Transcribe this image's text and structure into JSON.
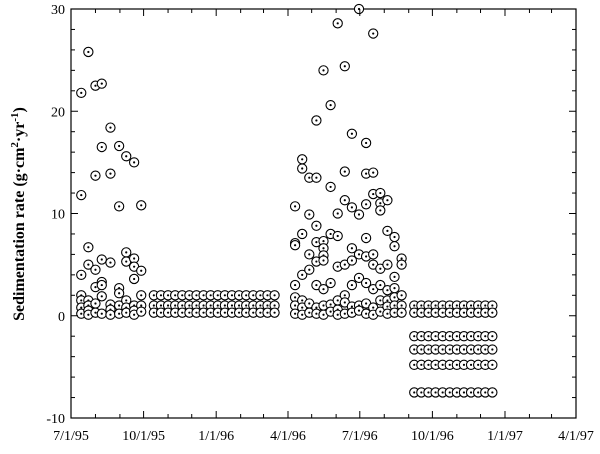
{
  "chart_data": {
    "type": "scatter",
    "title": "",
    "ylabel": {
      "main": "Sedimentation rate (g·cm",
      "sup1": "2",
      "mid": "·yr",
      "sup2": "-1",
      "end": ")"
    },
    "xlabel": "",
    "xlim": [
      "1995-07-01",
      "1997-04-01"
    ],
    "ylim": [
      -10,
      30
    ],
    "x_ticks": [
      "7/1/95",
      "10/1/95",
      "1/1/96",
      "4/1/96",
      "7/1/96",
      "10/1/96",
      "1/1/97",
      "4/1/97"
    ],
    "y_ticks": [
      "-10",
      "0",
      "10",
      "20",
      "30"
    ],
    "grid": false,
    "marker": "circle-dot",
    "points": [
      [
        "1995-07-14",
        11.8
      ],
      [
        "1995-07-14",
        21.8
      ],
      [
        "1995-07-14",
        4.0
      ],
      [
        "1995-07-14",
        2.0
      ],
      [
        "1995-07-14",
        1.5
      ],
      [
        "1995-07-14",
        0.8
      ],
      [
        "1995-07-14",
        0.2
      ],
      [
        "1995-07-23",
        25.8
      ],
      [
        "1995-07-23",
        6.7
      ],
      [
        "1995-07-23",
        5.0
      ],
      [
        "1995-07-23",
        1.5
      ],
      [
        "1995-07-23",
        1.0
      ],
      [
        "1995-07-23",
        0.5
      ],
      [
        "1995-07-23",
        0.1
      ],
      [
        "1995-08-01",
        22.5
      ],
      [
        "1995-08-01",
        13.7
      ],
      [
        "1995-08-01",
        4.5
      ],
      [
        "1995-08-01",
        2.8
      ],
      [
        "1995-08-01",
        1.2
      ],
      [
        "1995-08-01",
        0.3
      ],
      [
        "1995-08-09",
        22.7
      ],
      [
        "1995-08-09",
        16.5
      ],
      [
        "1995-08-09",
        5.5
      ],
      [
        "1995-08-09",
        3.3
      ],
      [
        "1995-08-09",
        3.0
      ],
      [
        "1995-08-09",
        1.9
      ],
      [
        "1995-08-09",
        0.2
      ],
      [
        "1995-08-20",
        18.4
      ],
      [
        "1995-08-20",
        13.9
      ],
      [
        "1995-08-20",
        5.2
      ],
      [
        "1995-08-20",
        1.1
      ],
      [
        "1995-08-20",
        0.6
      ],
      [
        "1995-08-20",
        0.1
      ],
      [
        "1995-08-31",
        16.6
      ],
      [
        "1995-08-31",
        10.7
      ],
      [
        "1995-08-31",
        2.7
      ],
      [
        "1995-08-31",
        2.2
      ],
      [
        "1995-08-31",
        1.0
      ],
      [
        "1995-08-31",
        0.2
      ],
      [
        "1995-09-09",
        15.6
      ],
      [
        "1995-09-09",
        6.2
      ],
      [
        "1995-09-09",
        5.3
      ],
      [
        "1995-09-09",
        1.5
      ],
      [
        "1995-09-09",
        0.8
      ],
      [
        "1995-09-09",
        0.3
      ],
      [
        "1995-09-19",
        15.0
      ],
      [
        "1995-09-19",
        5.6
      ],
      [
        "1995-09-19",
        4.8
      ],
      [
        "1995-09-19",
        3.6
      ],
      [
        "1995-09-19",
        1.0
      ],
      [
        "1995-09-19",
        0.5
      ],
      [
        "1995-09-19",
        0.1
      ],
      [
        "1995-09-28",
        10.8
      ],
      [
        "1995-09-28",
        4.4
      ],
      [
        "1995-09-28",
        2.0
      ],
      [
        "1995-09-28",
        1.0
      ],
      [
        "1995-09-28",
        0.4
      ],
      [
        "1995-10-14",
        2.0
      ],
      [
        "1995-10-14",
        1.0
      ],
      [
        "1995-10-14",
        0.3
      ],
      [
        "1995-10-23",
        2.0
      ],
      [
        "1995-10-23",
        1.0
      ],
      [
        "1995-10-23",
        0.3
      ],
      [
        "1995-11-01",
        2.0
      ],
      [
        "1995-11-01",
        1.0
      ],
      [
        "1995-11-01",
        0.3
      ],
      [
        "1995-11-10",
        2.0
      ],
      [
        "1995-11-10",
        1.0
      ],
      [
        "1995-11-10",
        0.3
      ],
      [
        "1995-11-19",
        2.0
      ],
      [
        "1995-11-19",
        1.0
      ],
      [
        "1995-11-19",
        0.3
      ],
      [
        "1995-11-28",
        2.0
      ],
      [
        "1995-11-28",
        1.0
      ],
      [
        "1995-11-28",
        0.3
      ],
      [
        "1995-12-07",
        2.0
      ],
      [
        "1995-12-07",
        1.0
      ],
      [
        "1995-12-07",
        0.3
      ],
      [
        "1995-12-16",
        2.0
      ],
      [
        "1995-12-16",
        1.0
      ],
      [
        "1995-12-16",
        0.3
      ],
      [
        "1995-12-25",
        2.0
      ],
      [
        "1995-12-25",
        1.0
      ],
      [
        "1995-12-25",
        0.3
      ],
      [
        "1996-01-03",
        2.0
      ],
      [
        "1996-01-03",
        1.0
      ],
      [
        "1996-01-03",
        0.3
      ],
      [
        "1996-01-12",
        2.0
      ],
      [
        "1996-01-12",
        1.0
      ],
      [
        "1996-01-12",
        0.3
      ],
      [
        "1996-01-21",
        2.0
      ],
      [
        "1996-01-21",
        1.0
      ],
      [
        "1996-01-21",
        0.3
      ],
      [
        "1996-01-30",
        2.0
      ],
      [
        "1996-01-30",
        1.0
      ],
      [
        "1996-01-30",
        0.3
      ],
      [
        "1996-02-08",
        2.0
      ],
      [
        "1996-02-08",
        1.0
      ],
      [
        "1996-02-08",
        0.3
      ],
      [
        "1996-02-17",
        2.0
      ],
      [
        "1996-02-17",
        1.0
      ],
      [
        "1996-02-17",
        0.3
      ],
      [
        "1996-02-26",
        2.0
      ],
      [
        "1996-02-26",
        1.0
      ],
      [
        "1996-02-26",
        0.3
      ],
      [
        "1996-03-06",
        2.0
      ],
      [
        "1996-03-06",
        1.0
      ],
      [
        "1996-03-06",
        0.3
      ],
      [
        "1996-03-15",
        2.0
      ],
      [
        "1996-03-15",
        1.0
      ],
      [
        "1996-03-15",
        0.3
      ],
      [
        "1996-04-10",
        10.7
      ],
      [
        "1996-04-10",
        7.1
      ],
      [
        "1996-04-10",
        6.9
      ],
      [
        "1996-04-10",
        3.0
      ],
      [
        "1996-04-10",
        1.8
      ],
      [
        "1996-04-10",
        1.0
      ],
      [
        "1996-04-10",
        0.2
      ],
      [
        "1996-04-19",
        15.3
      ],
      [
        "1996-04-19",
        14.4
      ],
      [
        "1996-04-19",
        8.0
      ],
      [
        "1996-04-19",
        4.0
      ],
      [
        "1996-04-19",
        1.5
      ],
      [
        "1996-04-19",
        0.8
      ],
      [
        "1996-04-19",
        0.1
      ],
      [
        "1996-04-28",
        13.5
      ],
      [
        "1996-04-28",
        9.9
      ],
      [
        "1996-04-28",
        6.0
      ],
      [
        "1996-04-28",
        4.5
      ],
      [
        "1996-04-28",
        1.2
      ],
      [
        "1996-04-28",
        0.3
      ],
      [
        "1996-05-07",
        19.1
      ],
      [
        "1996-05-07",
        13.5
      ],
      [
        "1996-05-07",
        8.8
      ],
      [
        "1996-05-07",
        7.2
      ],
      [
        "1996-05-07",
        5.3
      ],
      [
        "1996-05-07",
        3.0
      ],
      [
        "1996-05-07",
        0.8
      ],
      [
        "1996-05-07",
        0.2
      ],
      [
        "1996-05-16",
        24.0
      ],
      [
        "1996-05-16",
        7.3
      ],
      [
        "1996-05-16",
        6.6
      ],
      [
        "1996-05-16",
        5.9
      ],
      [
        "1996-05-16",
        5.4
      ],
      [
        "1996-05-16",
        2.6
      ],
      [
        "1996-05-16",
        1.0
      ],
      [
        "1996-05-16",
        0.1
      ],
      [
        "1996-05-25",
        20.6
      ],
      [
        "1996-05-25",
        12.6
      ],
      [
        "1996-05-25",
        8.0
      ],
      [
        "1996-05-25",
        3.2
      ],
      [
        "1996-05-25",
        1.1
      ],
      [
        "1996-05-25",
        0.4
      ],
      [
        "1996-06-03",
        28.6
      ],
      [
        "1996-06-03",
        10.0
      ],
      [
        "1996-06-03",
        7.8
      ],
      [
        "1996-06-03",
        4.8
      ],
      [
        "1996-06-03",
        1.5
      ],
      [
        "1996-06-03",
        0.6
      ],
      [
        "1996-06-03",
        0.1
      ],
      [
        "1996-06-12",
        24.4
      ],
      [
        "1996-06-12",
        14.1
      ],
      [
        "1996-06-12",
        11.3
      ],
      [
        "1996-06-12",
        5.0
      ],
      [
        "1996-06-12",
        2.0
      ],
      [
        "1996-06-12",
        1.3
      ],
      [
        "1996-06-12",
        0.2
      ],
      [
        "1996-06-21",
        17.8
      ],
      [
        "1996-06-21",
        10.6
      ],
      [
        "1996-06-21",
        6.6
      ],
      [
        "1996-06-21",
        5.4
      ],
      [
        "1996-06-21",
        3.0
      ],
      [
        "1996-06-21",
        0.9
      ],
      [
        "1996-06-21",
        0.3
      ],
      [
        "1996-06-30",
        30.0
      ],
      [
        "1996-06-30",
        9.9
      ],
      [
        "1996-06-30",
        6.0
      ],
      [
        "1996-06-30",
        3.7
      ],
      [
        "1996-06-30",
        1.0
      ],
      [
        "1996-06-30",
        0.5
      ],
      [
        "1996-07-09",
        16.9
      ],
      [
        "1996-07-09",
        13.9
      ],
      [
        "1996-07-09",
        10.9
      ],
      [
        "1996-07-09",
        7.6
      ],
      [
        "1996-07-09",
        5.8
      ],
      [
        "1996-07-09",
        3.2
      ],
      [
        "1996-07-09",
        1.2
      ],
      [
        "1996-07-09",
        0.2
      ],
      [
        "1996-07-18",
        27.6
      ],
      [
        "1996-07-18",
        14.0
      ],
      [
        "1996-07-18",
        11.9
      ],
      [
        "1996-07-18",
        6.0
      ],
      [
        "1996-07-18",
        5.0
      ],
      [
        "1996-07-18",
        2.6
      ],
      [
        "1996-07-18",
        0.8
      ],
      [
        "1996-07-18",
        0.1
      ],
      [
        "1996-07-27",
        12.0
      ],
      [
        "1996-07-27",
        11.0
      ],
      [
        "1996-07-27",
        10.3
      ],
      [
        "1996-07-27",
        4.6
      ],
      [
        "1996-07-27",
        3.0
      ],
      [
        "1996-07-27",
        1.5
      ],
      [
        "1996-07-27",
        0.4
      ],
      [
        "1996-08-05",
        11.3
      ],
      [
        "1996-08-05",
        8.3
      ],
      [
        "1996-08-05",
        5.0
      ],
      [
        "1996-08-05",
        2.5
      ],
      [
        "1996-08-05",
        1.5
      ],
      [
        "1996-08-05",
        0.9
      ],
      [
        "1996-08-05",
        0.2
      ],
      [
        "1996-08-14",
        7.7
      ],
      [
        "1996-08-14",
        6.8
      ],
      [
        "1996-08-14",
        3.8
      ],
      [
        "1996-08-14",
        2.7
      ],
      [
        "1996-08-14",
        1.8
      ],
      [
        "1996-08-14",
        1.0
      ],
      [
        "1996-08-14",
        0.3
      ],
      [
        "1996-08-23",
        5.6
      ],
      [
        "1996-08-23",
        5.0
      ],
      [
        "1996-08-23",
        2.0
      ],
      [
        "1996-08-23",
        1.0
      ],
      [
        "1996-08-23",
        0.3
      ],
      [
        "1996-09-08",
        1.0
      ],
      [
        "1996-09-08",
        0.3
      ],
      [
        "1996-09-08",
        -2.0
      ],
      [
        "1996-09-08",
        -3.3
      ],
      [
        "1996-09-08",
        -4.8
      ],
      [
        "1996-09-08",
        -7.5
      ],
      [
        "1996-09-17",
        1.0
      ],
      [
        "1996-09-17",
        0.3
      ],
      [
        "1996-09-17",
        -2.0
      ],
      [
        "1996-09-17",
        -3.3
      ],
      [
        "1996-09-17",
        -4.8
      ],
      [
        "1996-09-17",
        -7.5
      ],
      [
        "1996-09-26",
        1.0
      ],
      [
        "1996-09-26",
        0.3
      ],
      [
        "1996-09-26",
        -2.0
      ],
      [
        "1996-09-26",
        -3.3
      ],
      [
        "1996-09-26",
        -4.8
      ],
      [
        "1996-09-26",
        -7.5
      ],
      [
        "1996-10-05",
        1.0
      ],
      [
        "1996-10-05",
        0.3
      ],
      [
        "1996-10-05",
        -2.0
      ],
      [
        "1996-10-05",
        -3.3
      ],
      [
        "1996-10-05",
        -4.8
      ],
      [
        "1996-10-05",
        -7.5
      ],
      [
        "1996-10-14",
        1.0
      ],
      [
        "1996-10-14",
        0.3
      ],
      [
        "1996-10-14",
        -2.0
      ],
      [
        "1996-10-14",
        -3.3
      ],
      [
        "1996-10-14",
        -4.8
      ],
      [
        "1996-10-14",
        -7.5
      ],
      [
        "1996-10-23",
        1.0
      ],
      [
        "1996-10-23",
        0.3
      ],
      [
        "1996-10-23",
        -2.0
      ],
      [
        "1996-10-23",
        -3.3
      ],
      [
        "1996-10-23",
        -4.8
      ],
      [
        "1996-10-23",
        -7.5
      ],
      [
        "1996-11-01",
        1.0
      ],
      [
        "1996-11-01",
        0.3
      ],
      [
        "1996-11-01",
        -2.0
      ],
      [
        "1996-11-01",
        -3.3
      ],
      [
        "1996-11-01",
        -4.8
      ],
      [
        "1996-11-01",
        -7.5
      ],
      [
        "1996-11-10",
        1.0
      ],
      [
        "1996-11-10",
        0.3
      ],
      [
        "1996-11-10",
        -2.0
      ],
      [
        "1996-11-10",
        -3.3
      ],
      [
        "1996-11-10",
        -4.8
      ],
      [
        "1996-11-10",
        -7.5
      ],
      [
        "1996-11-19",
        1.0
      ],
      [
        "1996-11-19",
        0.3
      ],
      [
        "1996-11-19",
        -2.0
      ],
      [
        "1996-11-19",
        -3.3
      ],
      [
        "1996-11-19",
        -4.8
      ],
      [
        "1996-11-19",
        -7.5
      ],
      [
        "1996-11-28",
        1.0
      ],
      [
        "1996-11-28",
        0.3
      ],
      [
        "1996-11-28",
        -2.0
      ],
      [
        "1996-11-28",
        -3.3
      ],
      [
        "1996-11-28",
        -4.8
      ],
      [
        "1996-11-28",
        -7.5
      ],
      [
        "1996-12-07",
        1.0
      ],
      [
        "1996-12-07",
        0.3
      ],
      [
        "1996-12-07",
        -2.0
      ],
      [
        "1996-12-07",
        -3.3
      ],
      [
        "1996-12-07",
        -4.8
      ],
      [
        "1996-12-07",
        -7.5
      ],
      [
        "1996-12-16",
        1.0
      ],
      [
        "1996-12-16",
        0.3
      ],
      [
        "1996-12-16",
        -2.0
      ],
      [
        "1996-12-16",
        -3.3
      ],
      [
        "1996-12-16",
        -4.8
      ],
      [
        "1996-12-16",
        -7.5
      ]
    ]
  }
}
